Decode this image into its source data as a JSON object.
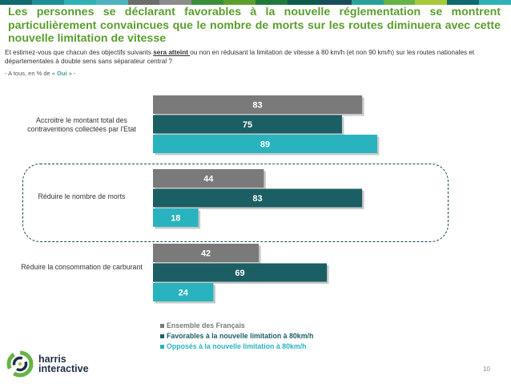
{
  "colors": {
    "strip": [
      "#0f6b6e",
      "#1e8f94",
      "#2fb1b6",
      "#4fb3bf",
      "#6c6c6c",
      "#8c8c8c",
      "#3a8f3a",
      "#5b9e2e",
      "#1f7a3c",
      "#0d5b4a",
      "#1a4d5c",
      "#2aa198",
      "#66b346",
      "#a7c93a",
      "#0f6b6e",
      "#2fb1b6"
    ],
    "ensemble": "#7a7a7a",
    "favorables": "#1b5e63",
    "opposes": "#29b3be",
    "title": "#5b9e2e"
  },
  "header": {
    "title": "Les personnes se déclarant favorables à la nouvelle réglementation se montrent particulièrement convaincues que le nombre de morts sur les routes diminuera avec cette nouvelle limitation de vitesse",
    "question_before": "Et estimez-vous que chacun des objectifs suivants ",
    "question_underlined": "sera atteint ",
    "question_after": "ou non en réduisant la limitation de vitesse à 80 km/h (et non 90 km/h) sur les routes nationales et départementales à double sens sans séparateur central ?",
    "base_before": "- A tous, en % de « ",
    "base_oui": "Oui",
    "base_after": " » -"
  },
  "chart_data": {
    "type": "bar",
    "orientation": "horizontal",
    "categories": [
      "Accroitre le montant total des contraventions collectées par l'Etat",
      "Réduire le nombre de morts",
      "Réduire la consommation de carburant"
    ],
    "series": [
      {
        "name": "Ensemble des Français",
        "values": [
          83,
          44,
          42
        ]
      },
      {
        "name": "Favorables à la nouvelle limitation à 80km/h",
        "values": [
          75,
          83,
          69
        ]
      },
      {
        "name": "Opposés à la nouvelle limitation à 80km/h",
        "values": [
          89,
          18,
          24
        ]
      }
    ],
    "xlim": [
      0,
      100
    ],
    "highlighted_category": "Réduire le nombre de morts",
    "legend_position": "bottom"
  },
  "footer": {
    "brand_line1": "harris",
    "brand_line2": "interactive",
    "page_number": "10"
  }
}
